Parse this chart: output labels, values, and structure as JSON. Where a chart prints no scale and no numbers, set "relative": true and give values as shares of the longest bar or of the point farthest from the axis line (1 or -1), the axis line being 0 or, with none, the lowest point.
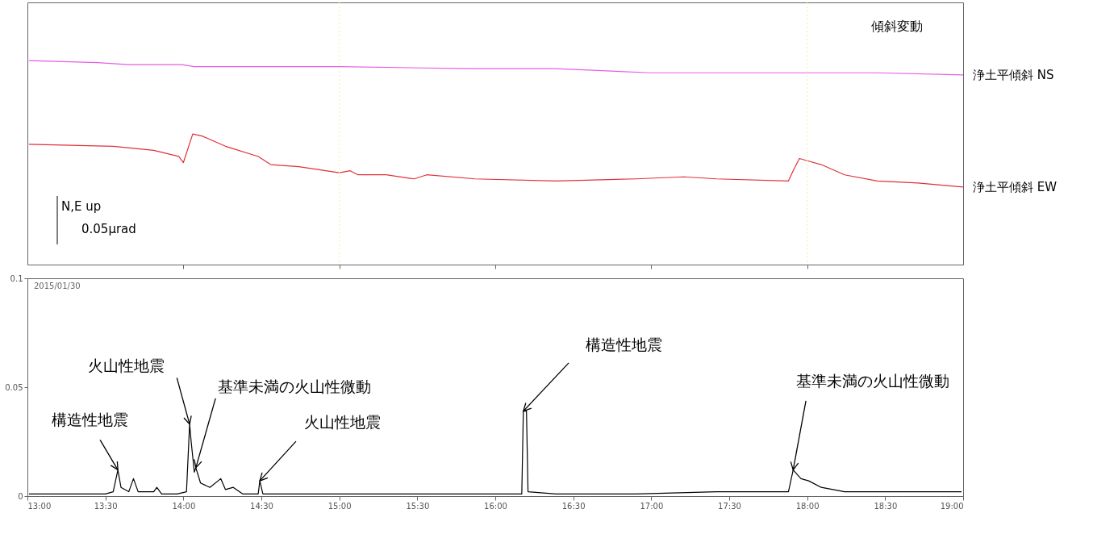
{
  "chart_data": [
    {
      "type": "line",
      "title": "傾斜変動",
      "relative": true,
      "xlim": [
        13,
        19
      ],
      "xticks": [
        {
          "value": 14,
          "label": null
        },
        {
          "value": 15,
          "label": null
        },
        {
          "value": 16,
          "label": null
        },
        {
          "value": 17,
          "label": null
        },
        {
          "value": 18,
          "label": null
        }
      ],
      "tick_labels": false,
      "grid": false,
      "annotations": [
        "N,E  up",
        "0.05μrad"
      ],
      "ref_lines": [
        {
          "axis": "x",
          "value": 15,
          "color": "#f2f09a",
          "line_style": "dotted"
        },
        {
          "axis": "x",
          "value": 18,
          "color": "#f2f09a",
          "line_style": "dotted"
        }
      ],
      "series": [
        {
          "name": "浄土平傾斜 NS",
          "color": "#e65ce6",
          "x": [
            13.01,
            13.45,
            13.65,
            13.99,
            14.07,
            14.32,
            15.0,
            15.87,
            16.39,
            17.0,
            17.42,
            18.0,
            18.45,
            19.0
          ],
          "values": [
            1.0,
            0.99,
            0.98,
            0.98,
            0.97,
            0.97,
            0.97,
            0.96,
            0.96,
            0.94,
            0.94,
            0.94,
            0.94,
            0.93
          ]
        },
        {
          "name": "浄土平傾斜 EW",
          "color": "#e0303a",
          "x": [
            13.01,
            13.55,
            13.81,
            13.97,
            14.0,
            14.06,
            14.12,
            14.27,
            14.48,
            14.56,
            14.74,
            15.0,
            15.07,
            15.12,
            15.3,
            15.48,
            15.56,
            15.87,
            16.39,
            16.9,
            17.21,
            17.42,
            17.88,
            17.91,
            17.95,
            18.09,
            18.24,
            18.45,
            18.71,
            19.0
          ],
          "values": [
            0.59,
            0.58,
            0.56,
            0.53,
            0.5,
            0.64,
            0.63,
            0.58,
            0.53,
            0.49,
            0.48,
            0.45,
            0.46,
            0.44,
            0.44,
            0.42,
            0.44,
            0.42,
            0.41,
            0.42,
            0.43,
            0.42,
            0.41,
            0.46,
            0.52,
            0.49,
            0.44,
            0.41,
            0.4,
            0.38
          ]
        }
      ]
    },
    {
      "type": "line",
      "xlim": [
        13,
        19
      ],
      "ylim": [
        0,
        0.1
      ],
      "yticks": [
        0,
        0.05,
        0.1
      ],
      "grid": false,
      "xticks": [
        {
          "value": 13,
          "label": "13:00"
        },
        {
          "value": 13.5,
          "label": "13:30"
        },
        {
          "value": 14,
          "label": "14:00"
        },
        {
          "value": 14.5,
          "label": "14:30"
        },
        {
          "value": 15,
          "label": "15:00"
        },
        {
          "value": 15.5,
          "label": "15:30"
        },
        {
          "value": 16,
          "label": "16:00"
        },
        {
          "value": 16.5,
          "label": "16:30"
        },
        {
          "value": 17,
          "label": "17:00"
        },
        {
          "value": 17.5,
          "label": "17:30"
        },
        {
          "value": 18,
          "label": "18:00"
        },
        {
          "value": 18.5,
          "label": "18:30"
        },
        {
          "value": 19,
          "label": "19:00"
        }
      ],
      "annotations": [
        "2015/01/30",
        {
          "text": "構造性地震",
          "x": 13.58,
          "y": 0.012
        },
        {
          "text": "火山性地震",
          "x": 14.04,
          "y": 0.033
        },
        {
          "text": "基準未満の火山性微動",
          "x": 14.08,
          "y": 0.013
        },
        {
          "text": "火山性地震",
          "x": 14.49,
          "y": 0.007
        },
        {
          "text": "構造性地震",
          "x": 16.18,
          "y": 0.039
        },
        {
          "text": "基準未満の火山性微動",
          "x": 17.91,
          "y": 0.012
        }
      ],
      "series": [
        {
          "color": "#000000",
          "x": [
            13.01,
            13.29,
            13.5,
            13.55,
            13.58,
            13.6,
            13.65,
            13.68,
            13.71,
            13.81,
            13.83,
            13.86,
            13.96,
            14.02,
            14.04,
            14.05,
            14.07,
            14.08,
            14.11,
            14.17,
            14.24,
            14.27,
            14.32,
            14.38,
            14.48,
            14.49,
            14.51,
            14.84,
            15.36,
            15.87,
            16.15,
            16.17,
            16.18,
            16.2,
            16.21,
            16.39,
            16.9,
            17.42,
            17.88,
            17.91,
            17.96,
            18.01,
            18.09,
            18.24,
            18.45,
            18.99
          ],
          "values": [
            0.001,
            0.001,
            0.001,
            0.002,
            0.012,
            0.004,
            0.002,
            0.008,
            0.002,
            0.002,
            0.004,
            0.001,
            0.001,
            0.002,
            0.033,
            0.025,
            0.011,
            0.013,
            0.006,
            0.004,
            0.008,
            0.003,
            0.004,
            0.001,
            0.001,
            0.007,
            0.001,
            0.001,
            0.001,
            0.001,
            0.001,
            0.001,
            0.039,
            0.039,
            0.002,
            0.001,
            0.001,
            0.002,
            0.002,
            0.012,
            0.008,
            0.007,
            0.004,
            0.002,
            0.002,
            0.002
          ]
        }
      ]
    }
  ]
}
